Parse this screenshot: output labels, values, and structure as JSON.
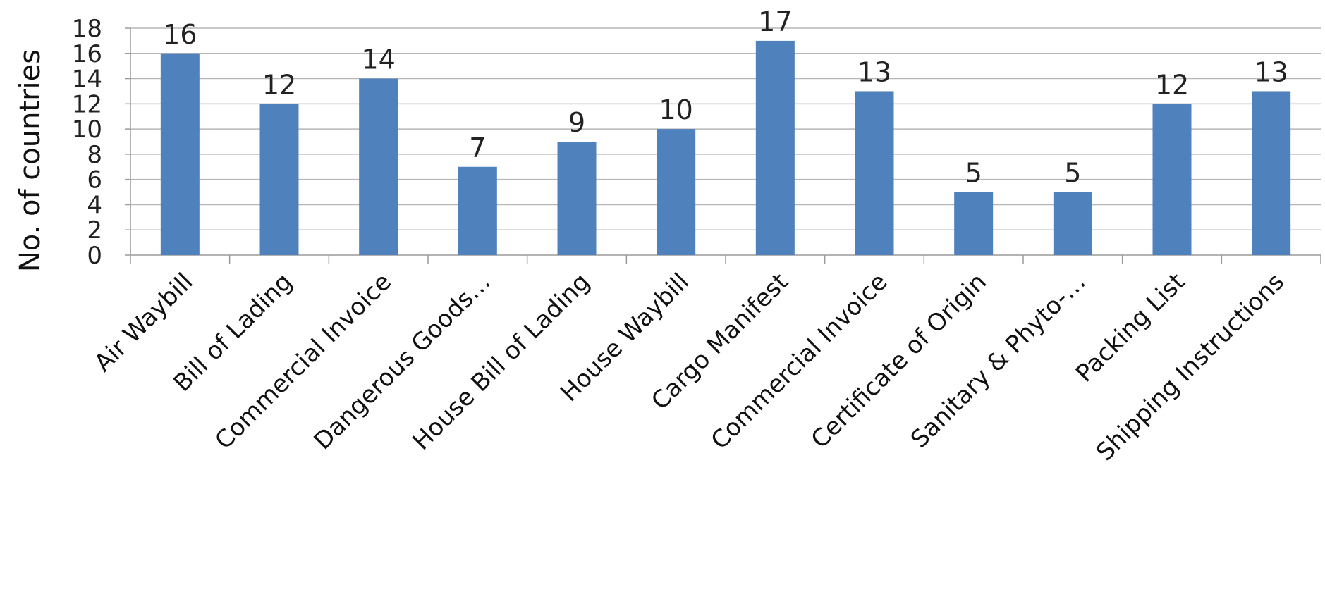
{
  "chart_data": {
    "type": "bar",
    "title": "",
    "xlabel": "",
    "ylabel": "No. of countries",
    "ylim": [
      0,
      18
    ],
    "yticks": [
      0,
      2,
      4,
      6,
      8,
      10,
      12,
      14,
      16,
      18
    ],
    "grid": true,
    "legend": "none",
    "bar_color": "#4f81bd",
    "categories": [
      "Air Waybill",
      "Bill of Lading",
      "Commercial Invoice",
      "Dangerous Goods…",
      "House Bill of Lading",
      "House Waybill",
      "Cargo Manifest",
      "Commercial Invoice",
      "Certificate of Origin",
      "Sanitary & Phyto-…",
      "Packing List",
      "Shipping Instructions"
    ],
    "values": [
      16,
      12,
      14,
      7,
      9,
      10,
      17,
      13,
      5,
      5,
      12,
      13
    ]
  }
}
